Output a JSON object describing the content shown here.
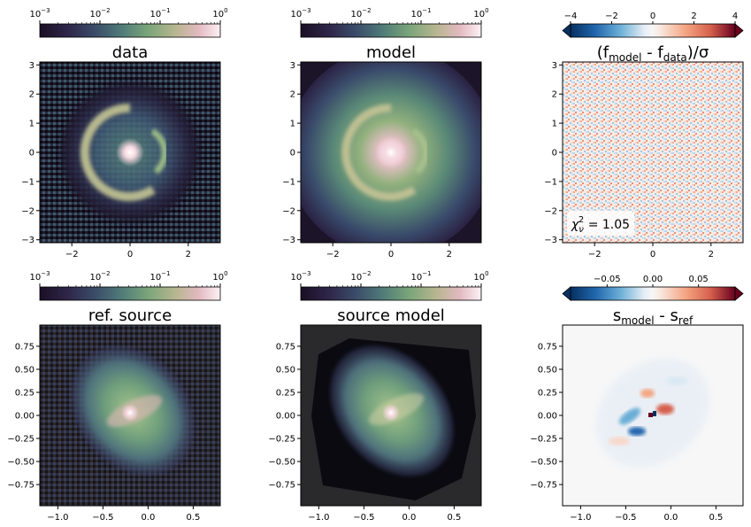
{
  "chart_data": [
    {
      "type": "heatmap",
      "title": "data",
      "xlim": [
        -3.1,
        3.1
      ],
      "ylim": [
        -3.1,
        3.1
      ],
      "xticks": [
        -2,
        0,
        2
      ],
      "yticks": [
        -3,
        -2,
        -1,
        0,
        1,
        2,
        3
      ],
      "xtick_labels": [
        "−2",
        "0",
        "2"
      ],
      "ytick_labels": [
        "−3",
        "−2",
        "−1",
        "0",
        "1",
        "2",
        "3"
      ],
      "colormap": "cubehelix-like (dark purple → green → pink → white)",
      "scale": "log",
      "colorbar": {
        "location": "top",
        "range": [
          0.001,
          1
        ],
        "ticks": [
          {
            "base": "10",
            "exp": "−3"
          },
          {
            "base": "10",
            "exp": "−2"
          },
          {
            "base": "10",
            "exp": "−1"
          },
          {
            "base": "10",
            "exp": "0"
          }
        ]
      }
    },
    {
      "type": "heatmap",
      "title": "model",
      "xlim": [
        -3.1,
        3.1
      ],
      "ylim": [
        -3.1,
        3.1
      ],
      "xticks": [
        -2,
        0,
        2
      ],
      "yticks": [
        -3,
        -2,
        -1,
        0,
        1,
        2,
        3
      ],
      "xtick_labels": [
        "−2",
        "0",
        "2"
      ],
      "ytick_labels": [
        "−3",
        "−2",
        "−1",
        "0",
        "1",
        "2",
        "3"
      ],
      "scale": "log",
      "colorbar": {
        "location": "top",
        "range": [
          0.001,
          1
        ],
        "ticks": [
          {
            "base": "10",
            "exp": "−3"
          },
          {
            "base": "10",
            "exp": "−2"
          },
          {
            "base": "10",
            "exp": "−1"
          },
          {
            "base": "10",
            "exp": "0"
          }
        ]
      }
    },
    {
      "type": "heatmap",
      "title": {
        "open": "(f",
        "sub1": "model",
        "mid": " - f",
        "sub2": "data",
        "close": ")/σ"
      },
      "xlim": [
        -3.1,
        3.1
      ],
      "ylim": [
        -3.1,
        3.1
      ],
      "xticks": [
        -2,
        0,
        2
      ],
      "yticks": [
        -3,
        -2,
        -1,
        0,
        1,
        2,
        3
      ],
      "xtick_labels": [
        "−2",
        "0",
        "2"
      ],
      "ytick_labels": [
        "−3",
        "−2",
        "−1",
        "0",
        "1",
        "2",
        "3"
      ],
      "colormap": "RdBu_r",
      "annotation": {
        "prefix": "χ",
        "sub": "ν",
        "sup": "2",
        "suffix": " = 1.05"
      },
      "colorbar": {
        "location": "top",
        "range": [
          -4,
          4
        ],
        "extend": "both",
        "ticks": [
          -4,
          -2,
          0,
          2,
          4
        ],
        "tick_labels": [
          "−4",
          "−2",
          "0",
          "2",
          "4"
        ]
      }
    },
    {
      "type": "heatmap",
      "title": "ref. source",
      "xlim": [
        -1.2,
        0.8
      ],
      "ylim": [
        -0.98,
        0.98
      ],
      "xticks": [
        -1.0,
        -0.5,
        0.0,
        0.5
      ],
      "yticks": [
        -0.75,
        -0.5,
        -0.25,
        0.0,
        0.25,
        0.5,
        0.75
      ],
      "xtick_labels": [
        "−1.0",
        "−0.5",
        "0.0",
        "0.5"
      ],
      "ytick_labels": [
        "−0.75",
        "−0.50",
        "−0.25",
        "0.00",
        "0.25",
        "0.50",
        "0.75"
      ],
      "scale": "log",
      "colorbar": {
        "location": "top",
        "range": [
          0.001,
          1
        ],
        "ticks": [
          {
            "base": "10",
            "exp": "−3"
          },
          {
            "base": "10",
            "exp": "−2"
          },
          {
            "base": "10",
            "exp": "−1"
          },
          {
            "base": "10",
            "exp": "0"
          }
        ]
      }
    },
    {
      "type": "heatmap",
      "title": "source model",
      "xlim": [
        -1.2,
        0.8
      ],
      "ylim": [
        -0.98,
        0.98
      ],
      "xticks": [
        -1.0,
        -0.5,
        0.0,
        0.5
      ],
      "yticks": [
        -0.75,
        -0.5,
        -0.25,
        0.0,
        0.25,
        0.5,
        0.75
      ],
      "xtick_labels": [
        "−1.0",
        "−0.5",
        "0.0",
        "0.5"
      ],
      "ytick_labels": [
        "−0.75",
        "−0.50",
        "−0.25",
        "0.00",
        "0.25",
        "0.50",
        "0.75"
      ],
      "scale": "log",
      "colorbar": {
        "location": "top",
        "range": [
          0.001,
          1
        ],
        "ticks": [
          {
            "base": "10",
            "exp": "−3"
          },
          {
            "base": "10",
            "exp": "−2"
          },
          {
            "base": "10",
            "exp": "−1"
          },
          {
            "base": "10",
            "exp": "0"
          }
        ]
      }
    },
    {
      "type": "heatmap",
      "title": {
        "open": "s",
        "sub1": "model",
        "mid": " - s",
        "sub2": "ref",
        "close": ""
      },
      "xlim": [
        -1.2,
        0.8
      ],
      "ylim": [
        -0.98,
        0.98
      ],
      "xticks": [
        -1.0,
        -0.5,
        0.0,
        0.5
      ],
      "yticks": [
        -0.75,
        -0.5,
        -0.25,
        0.0,
        0.25,
        0.5,
        0.75
      ],
      "xtick_labels": [
        "−1.0",
        "−0.5",
        "0.0",
        "0.5"
      ],
      "ytick_labels": [
        "−0.75",
        "−0.50",
        "−0.25",
        "0.00",
        "0.25",
        "0.50",
        "0.75"
      ],
      "colormap": "RdBu_r",
      "colorbar": {
        "location": "top",
        "range": [
          -0.09,
          0.09
        ],
        "extend": "both",
        "ticks": [
          -0.05,
          0.0,
          0.05
        ],
        "tick_labels": [
          "−0.05",
          "0.00",
          "0.05"
        ]
      }
    }
  ]
}
